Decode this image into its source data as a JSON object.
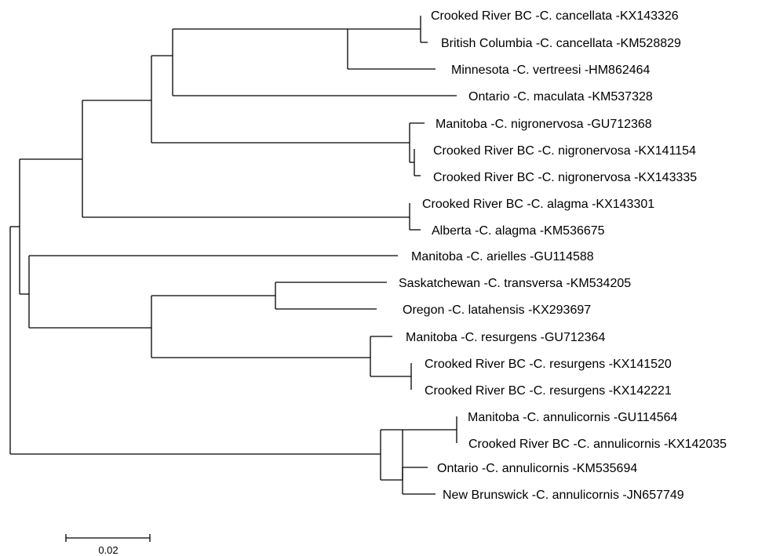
{
  "tree": {
    "leaves": [
      {
        "id": "L1",
        "label": "Crooked River BC -C. cancellata -KX143326"
      },
      {
        "id": "L2",
        "label": "British Columbia -C. cancellata -KM528829"
      },
      {
        "id": "L3",
        "label": "Minnesota -C. vertreesi -HM862464"
      },
      {
        "id": "L4",
        "label": "Ontario -C. maculata -KM537328"
      },
      {
        "id": "L5",
        "label": "Manitoba -C. nigronervosa -GU712368"
      },
      {
        "id": "L6",
        "label": "Crooked River BC -C. nigronervosa -KX141154"
      },
      {
        "id": "L7",
        "label": "Crooked River BC -C. nigronervosa -KX143335"
      },
      {
        "id": "L8",
        "label": "Crooked River BC -C. alagma -KX143301"
      },
      {
        "id": "L9",
        "label": "Alberta -C. alagma -KM536675"
      },
      {
        "id": "L10",
        "label": "Manitoba -C. arielles -GU114588"
      },
      {
        "id": "L11",
        "label": "Saskatchewan -C. transversa -KM534205"
      },
      {
        "id": "L12",
        "label": "Oregon -C. latahensis -KX293697"
      },
      {
        "id": "L13",
        "label": "Manitoba -C. resurgens -GU712364"
      },
      {
        "id": "L14",
        "label": "Crooked River BC -C. resurgens -KX141520"
      },
      {
        "id": "L15",
        "label": "Crooked River BC -C. resurgens -KX142221"
      },
      {
        "id": "L16",
        "label": "Manitoba -C. annulicornis -GU114564"
      },
      {
        "id": "L17",
        "label": "Crooked River BC -C. annulicornis -KX142035"
      },
      {
        "id": "L18",
        "label": "Ontario -C. annulicornis -KM535694"
      },
      {
        "id": "L19",
        "label": "New Brunswick -C. annulicornis -JN657749"
      }
    ]
  },
  "scale_bar": {
    "label": "0.02"
  }
}
